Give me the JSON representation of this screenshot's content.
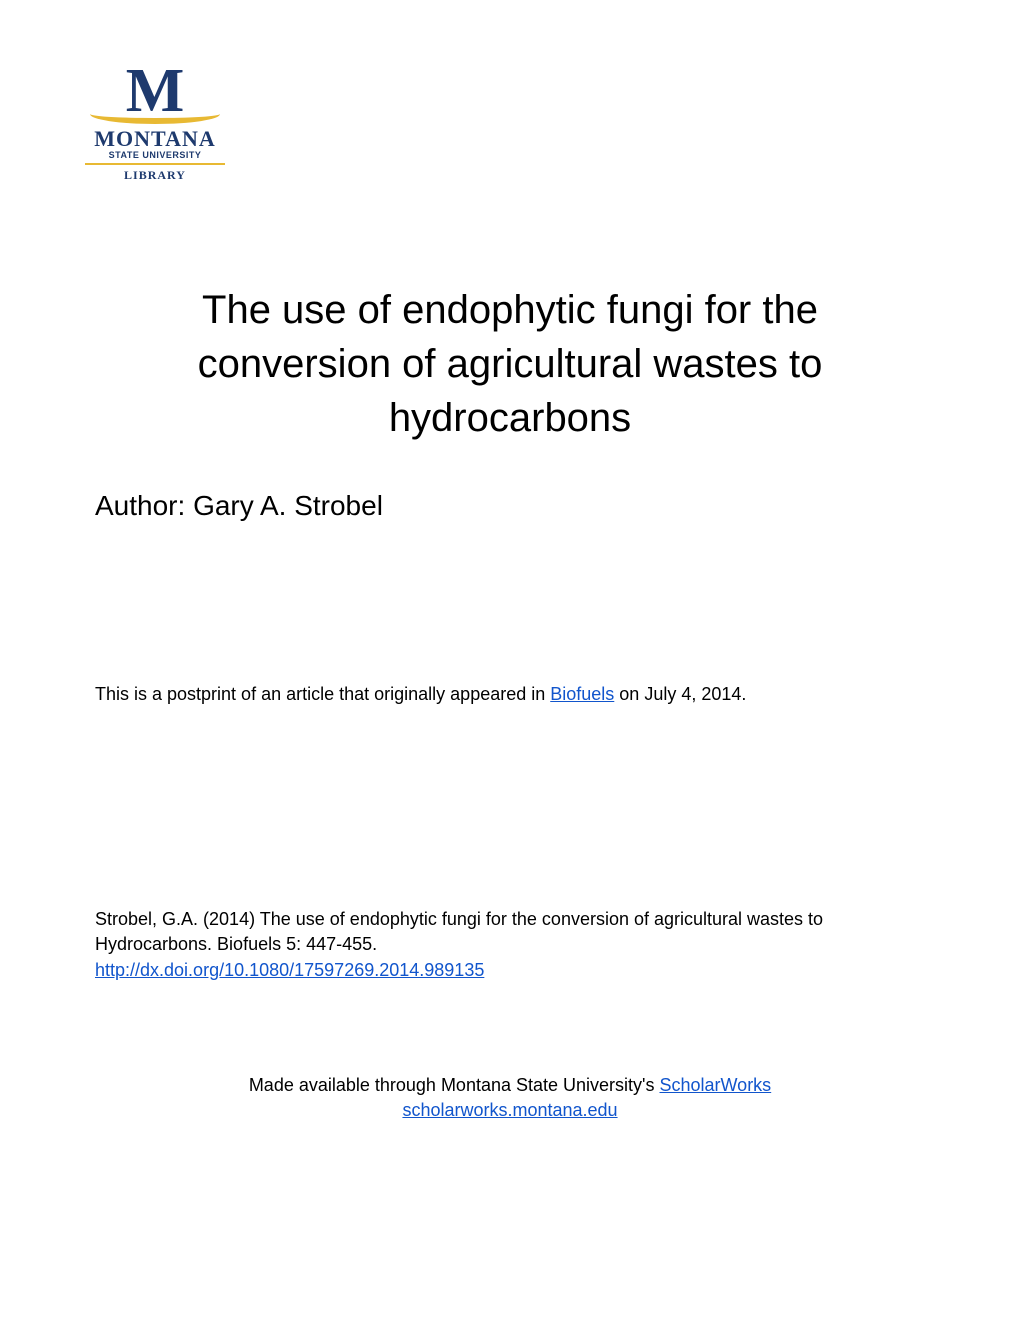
{
  "logo": {
    "m_letter": "M",
    "montana": "MONTANA",
    "state_university": "STATE UNIVERSITY",
    "library": "LIBRARY",
    "colors": {
      "blue": "#1e3a6e",
      "gold": "#e8b933"
    }
  },
  "title": "The use of endophytic fungi for the conversion of agricultural wastes to hydrocarbons",
  "author_label": "Author: ",
  "author_name": "Gary A. Strobel",
  "postprint": {
    "prefix": "This is a postprint of an article that originally appeared in ",
    "journal_link": "Biofuels",
    "suffix": " on July 4, 2014."
  },
  "citation": {
    "text": "Strobel, G.A. (2014) The use of endophytic fungi for the conversion of agricultural wastes to Hydrocarbons. Biofuels 5: 447-455.",
    "doi_link": "http://dx.doi.org/10.1080/17597269.2014.989135"
  },
  "availability": {
    "prefix": "Made available through Montana State University's ",
    "scholarworks_link": "ScholarWorks",
    "url": "scholarworks.montana.edu"
  },
  "typography": {
    "title_fontsize": 40,
    "author_fontsize": 28,
    "body_fontsize": 18,
    "link_color": "#1155cc",
    "text_color": "#000000",
    "background_color": "#ffffff"
  }
}
